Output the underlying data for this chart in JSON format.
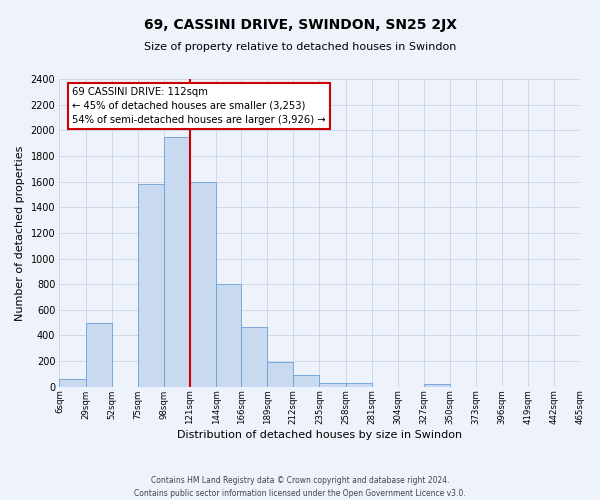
{
  "title": "69, CASSINI DRIVE, SWINDON, SN25 2JX",
  "subtitle": "Size of property relative to detached houses in Swindon",
  "xlabel": "Distribution of detached houses by size in Swindon",
  "ylabel": "Number of detached properties",
  "bar_color": "#c9d9f0",
  "bar_edge_color": "#6a9fd8",
  "grid_color": "#c8d4e8",
  "background_color": "#eef2fa",
  "vline_color": "#cc0000",
  "bin_labels": [
    "6sqm",
    "29sqm",
    "52sqm",
    "75sqm",
    "98sqm",
    "121sqm",
    "144sqm",
    "166sqm",
    "189sqm",
    "212sqm",
    "235sqm",
    "258sqm",
    "281sqm",
    "304sqm",
    "327sqm",
    "350sqm",
    "373sqm",
    "396sqm",
    "419sqm",
    "442sqm",
    "465sqm"
  ],
  "bin_edges": [
    6,
    29,
    52,
    75,
    98,
    121,
    144,
    166,
    189,
    212,
    235,
    258,
    281,
    304,
    327,
    350,
    373,
    396,
    419,
    442,
    465
  ],
  "bar_heights": [
    60,
    500,
    0,
    1580,
    1950,
    1600,
    800,
    470,
    190,
    95,
    30,
    30,
    0,
    0,
    25,
    0,
    0,
    0,
    0,
    0
  ],
  "vline_x": 121,
  "ylim": [
    0,
    2400
  ],
  "yticks": [
    0,
    200,
    400,
    600,
    800,
    1000,
    1200,
    1400,
    1600,
    1800,
    2000,
    2200,
    2400
  ],
  "annotation_title": "69 CASSINI DRIVE: 112sqm",
  "annotation_line1": "← 45% of detached houses are smaller (3,253)",
  "annotation_line2": "54% of semi-detached houses are larger (3,926) →",
  "footer1": "Contains HM Land Registry data © Crown copyright and database right 2024.",
  "footer2": "Contains public sector information licensed under the Open Government Licence v3.0."
}
